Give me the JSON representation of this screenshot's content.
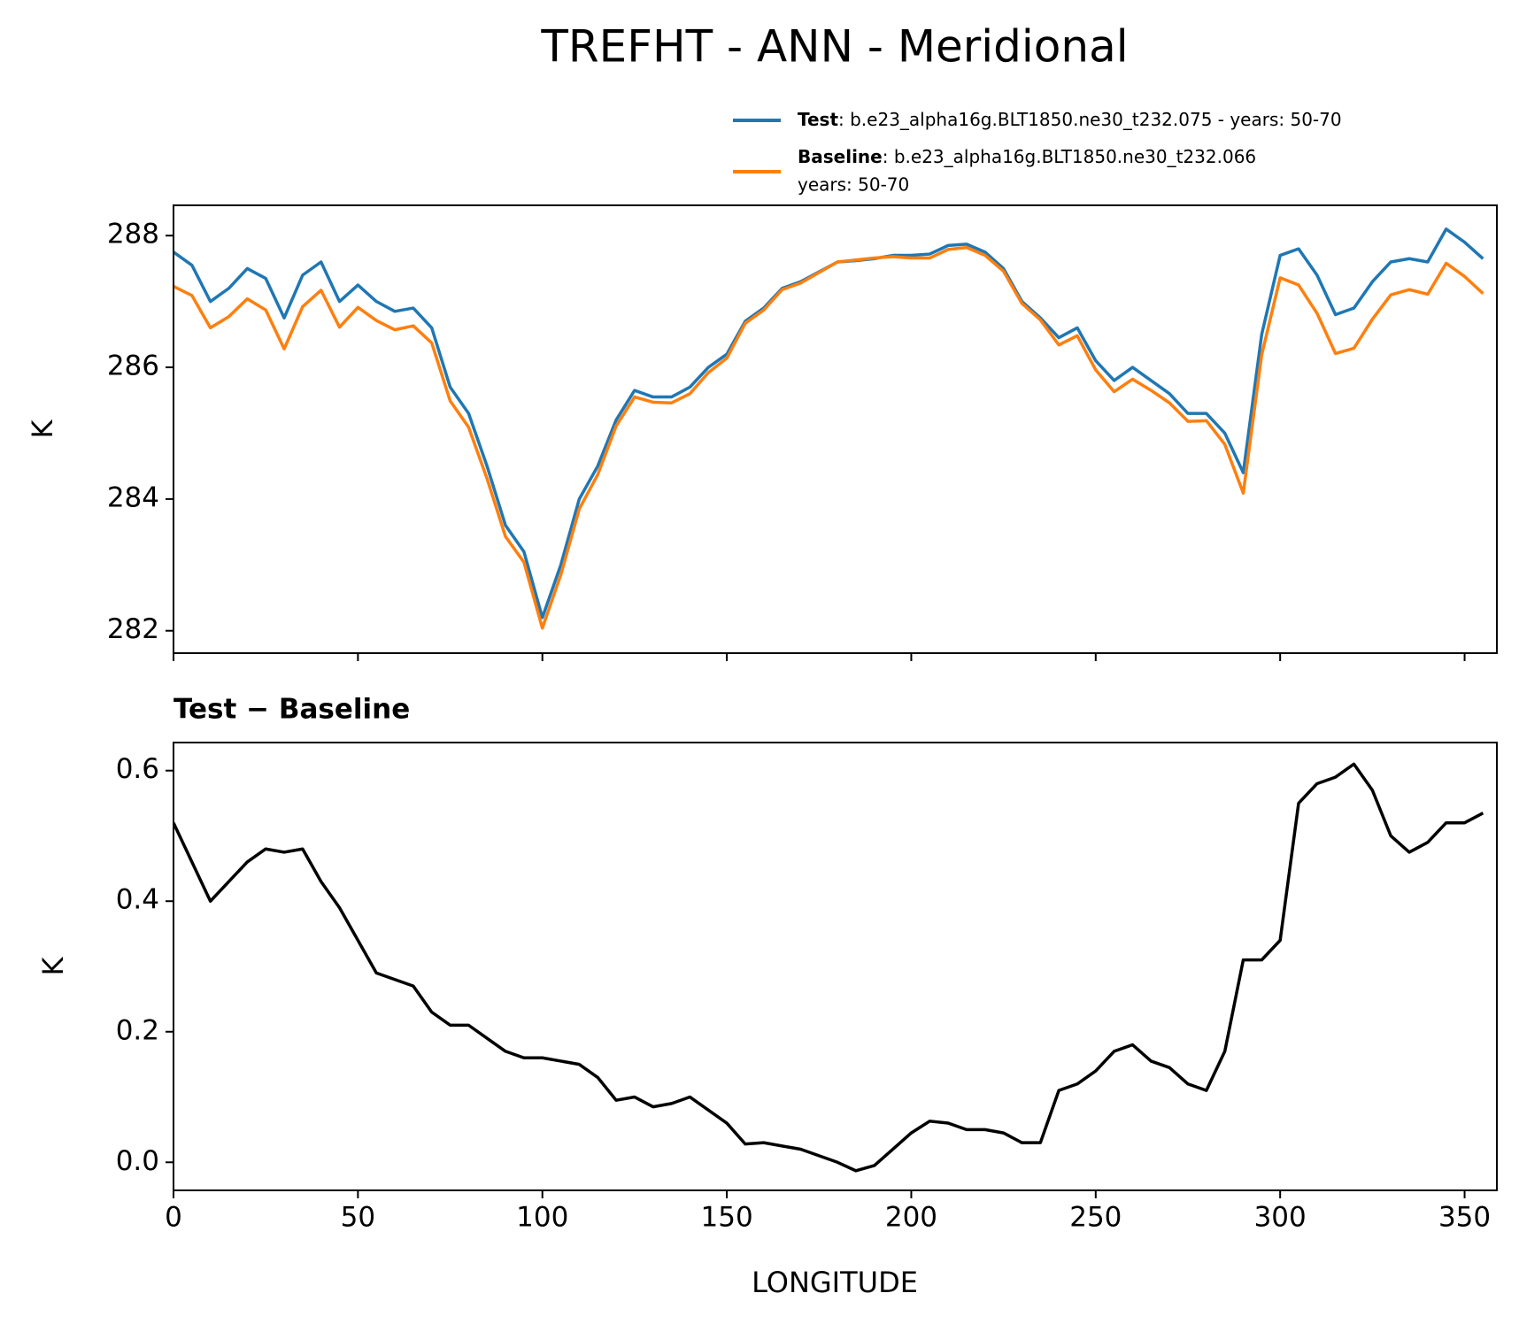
{
  "chart_data": [
    {
      "type": "line",
      "title": "TREFHT - ANN - Meridional",
      "ylabel": "K",
      "x": [
        0,
        5,
        10,
        15,
        20,
        25,
        30,
        35,
        40,
        45,
        50,
        55,
        60,
        65,
        70,
        75,
        80,
        85,
        90,
        95,
        100,
        105,
        110,
        115,
        120,
        125,
        130,
        135,
        140,
        145,
        150,
        155,
        160,
        165,
        170,
        175,
        180,
        185,
        190,
        195,
        200,
        205,
        210,
        215,
        220,
        225,
        230,
        235,
        240,
        245,
        250,
        255,
        260,
        265,
        270,
        275,
        280,
        285,
        290,
        295,
        300,
        305,
        310,
        315,
        320,
        325,
        330,
        335,
        340,
        345,
        350,
        355
      ],
      "series": [
        {
          "name": "Test",
          "description": [
            ": b.e23_alpha16g.BLT1850.ne30_t232.075 - years: 50-70"
          ],
          "color": "#1f77b4",
          "values": [
            287.75,
            287.55,
            287.0,
            287.2,
            287.5,
            287.35,
            286.75,
            287.4,
            287.6,
            287.0,
            287.25,
            287.0,
            286.85,
            286.9,
            286.6,
            285.7,
            285.3,
            284.5,
            283.6,
            283.2,
            282.2,
            283.0,
            284.0,
            284.5,
            285.2,
            285.65,
            285.55,
            285.55,
            285.7,
            286.0,
            286.2,
            286.7,
            286.9,
            287.2,
            287.3,
            287.45,
            287.6,
            287.62,
            287.65,
            287.7,
            287.7,
            287.72,
            287.85,
            287.87,
            287.75,
            287.5,
            287.0,
            286.75,
            286.45,
            286.6,
            286.1,
            285.8,
            286.0,
            285.8,
            285.6,
            285.3,
            285.3,
            285.0,
            284.4,
            286.5,
            287.7,
            287.8,
            287.4,
            286.8,
            286.9,
            287.3,
            287.6,
            287.65,
            287.6,
            288.1,
            287.9,
            287.65
          ]
        },
        {
          "name": "Baseline",
          "description": [
            ": b.e23_alpha16g.BLT1850.ne30_t232.066",
            "years: 50-70"
          ],
          "color": "#ff7f0e",
          "values": [
            287.23,
            287.09,
            286.6,
            286.77,
            287.04,
            286.87,
            286.28,
            286.92,
            287.17,
            286.61,
            286.91,
            286.71,
            286.57,
            286.63,
            286.37,
            285.49,
            285.09,
            284.31,
            283.43,
            283.04,
            282.04,
            282.85,
            283.85,
            284.37,
            285.11,
            285.55,
            285.47,
            285.46,
            285.6,
            285.92,
            286.14,
            286.67,
            286.87,
            287.18,
            287.28,
            287.44,
            287.6,
            287.63,
            287.66,
            287.68,
            287.66,
            287.66,
            287.79,
            287.82,
            287.7,
            287.46,
            286.97,
            286.72,
            286.34,
            286.48,
            285.96,
            285.63,
            285.82,
            285.65,
            285.46,
            285.18,
            285.19,
            284.83,
            284.09,
            286.19,
            287.36,
            287.25,
            286.82,
            286.21,
            286.29,
            286.73,
            287.1,
            287.18,
            287.11,
            287.58,
            287.38,
            287.12
          ]
        }
      ],
      "xlim": [
        0,
        358.75
      ],
      "xticks": [
        0,
        50,
        100,
        150,
        200,
        250,
        300,
        350
      ],
      "ylim": [
        281.66,
        288.46
      ],
      "yticks": [
        282,
        284,
        286,
        288
      ]
    },
    {
      "type": "line",
      "subtitle": "Test − Baseline",
      "ylabel": "K",
      "xlabel": "LONGITUDE",
      "x": [
        0,
        5,
        10,
        15,
        20,
        25,
        30,
        35,
        40,
        45,
        50,
        55,
        60,
        65,
        70,
        75,
        80,
        85,
        90,
        95,
        100,
        105,
        110,
        115,
        120,
        125,
        130,
        135,
        140,
        145,
        150,
        155,
        160,
        165,
        170,
        175,
        180,
        185,
        190,
        195,
        200,
        205,
        210,
        215,
        220,
        225,
        230,
        235,
        240,
        245,
        250,
        255,
        260,
        265,
        270,
        275,
        280,
        285,
        290,
        295,
        300,
        305,
        310,
        315,
        320,
        325,
        330,
        335,
        340,
        345,
        350,
        355
      ],
      "series": [
        {
          "color": "#000000",
          "values": [
            0.52,
            0.46,
            0.4,
            0.43,
            0.46,
            0.48,
            0.475,
            0.48,
            0.43,
            0.39,
            0.34,
            0.29,
            0.28,
            0.27,
            0.23,
            0.21,
            0.21,
            0.19,
            0.17,
            0.16,
            0.16,
            0.155,
            0.15,
            0.13,
            0.095,
            0.1,
            0.085,
            0.09,
            0.1,
            0.08,
            0.06,
            0.028,
            0.03,
            0.025,
            0.02,
            0.01,
            0.0,
            -0.013,
            -0.005,
            0.02,
            0.045,
            0.063,
            0.06,
            0.05,
            0.05,
            0.045,
            0.03,
            0.03,
            0.11,
            0.12,
            0.14,
            0.17,
            0.18,
            0.155,
            0.145,
            0.12,
            0.11,
            0.17,
            0.31,
            0.31,
            0.34,
            0.55,
            0.58,
            0.59,
            0.61,
            0.57,
            0.5,
            0.475,
            0.49,
            0.52,
            0.52,
            0.535
          ]
        }
      ],
      "xlim": [
        0,
        358.75
      ],
      "xticks": [
        0,
        50,
        100,
        150,
        200,
        250,
        300,
        350
      ],
      "ylim": [
        -0.043,
        0.643
      ],
      "yticks": [
        {
          "value": 0,
          "label": "0.0"
        },
        0.2,
        0.4,
        0.6
      ]
    }
  ]
}
